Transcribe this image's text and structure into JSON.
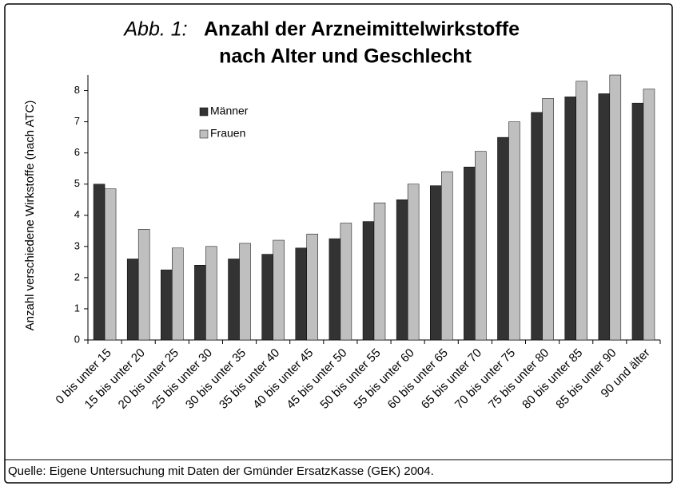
{
  "chart_data": {
    "type": "bar",
    "title_label": "Abb. 1:",
    "title": [
      "Anzahl der Arzneimittelwirkstoffe",
      "nach Alter und Geschlecht"
    ],
    "ylabel": "Anzahl verschiedene Wirkstoffe (nach ATC)",
    "source": "Quelle: Eigene Untersuchung mit Daten der Gmünder ErsatzKasse (GEK) 2004.",
    "categories": [
      "0 bis unter 15",
      "15 bis unter 20",
      "20 bis unter 25",
      "25 bis unter 30",
      "30 bis unter 35",
      "35 bis unter 40",
      "40 bis unter 45",
      "45 bis unter 50",
      "50 bis unter 55",
      "55 bis unter 60",
      "60 bis unter 65",
      "65 bis unter 70",
      "70 bis unter 75",
      "75 bis unter 80",
      "80 bis unter 85",
      "85 bis unter 90",
      "90 und älter"
    ],
    "series": [
      {
        "name": "Männer",
        "color": "#333333",
        "values": [
          5.0,
          2.6,
          2.25,
          2.4,
          2.6,
          2.75,
          2.95,
          3.25,
          3.8,
          4.5,
          4.95,
          5.55,
          6.5,
          7.3,
          7.8,
          7.9,
          7.6
        ]
      },
      {
        "name": "Frauen",
        "color": "#bfbfbf",
        "values": [
          4.85,
          3.55,
          2.95,
          3.0,
          3.1,
          3.2,
          3.4,
          3.75,
          4.4,
          5.0,
          5.4,
          6.05,
          7.0,
          7.75,
          8.3,
          8.5,
          8.05
        ]
      }
    ],
    "ylim": [
      0,
      8.5
    ],
    "yticks": [
      0,
      1,
      2,
      3,
      4,
      5,
      6,
      7,
      8
    ]
  }
}
